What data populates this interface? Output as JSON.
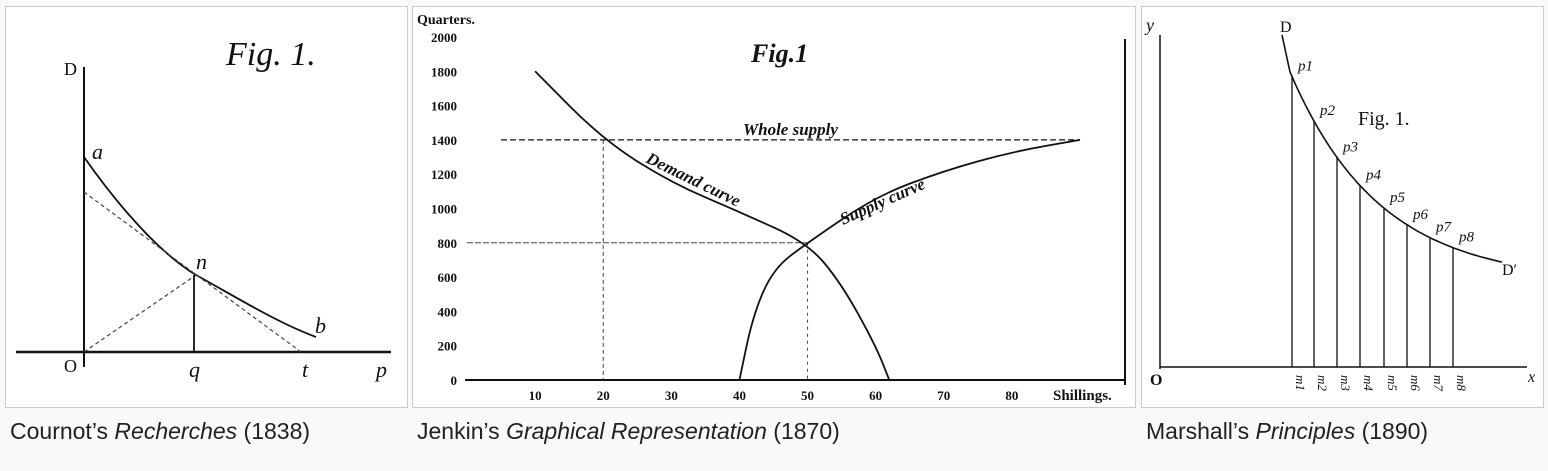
{
  "chart_data": [
    {
      "type": "line",
      "title": "Fig. 1.",
      "caption": {
        "prefix": "Cournot’s ",
        "italic": "Recherches",
        "suffix": " (1838)"
      },
      "labels": {
        "D": "D",
        "a": "a",
        "n": "n",
        "b": "b",
        "O": "O",
        "q": "q",
        "t": "t",
        "p": "p"
      }
    },
    {
      "type": "line",
      "title": "Fig.1",
      "caption": {
        "prefix": "Jenkin’s ",
        "italic": "Graphical Representation",
        "suffix": " (1870)"
      },
      "ylabel": "Quarters.",
      "xlabel": "Shillings.",
      "y_ticks": [
        0,
        200,
        400,
        600,
        800,
        1000,
        1200,
        1400,
        1600,
        1800,
        2000
      ],
      "x_ticks": [
        10,
        20,
        30,
        40,
        50,
        60,
        70,
        80
      ],
      "x_tick_labels": [
        "10",
        "20",
        "30",
        "40",
        "50",
        "60",
        "70",
        "80"
      ],
      "xlim": [
        0,
        90
      ],
      "ylim": [
        0,
        2000
      ],
      "annotations": {
        "whole_supply": "Whole supply",
        "demand": "Demand curve",
        "supply": "Supply curve"
      },
      "series": [
        {
          "name": "Demand curve",
          "x": [
            10,
            20,
            30,
            40,
            50,
            55,
            60,
            62
          ],
          "y": [
            1800,
            1400,
            1150,
            980,
            800,
            560,
            200,
            0
          ]
        },
        {
          "name": "Supply curve",
          "x": [
            40,
            42,
            45,
            50,
            60,
            70,
            80,
            90
          ],
          "y": [
            0,
            380,
            650,
            800,
            1070,
            1220,
            1330,
            1400
          ]
        },
        {
          "name": "Whole supply",
          "x": [
            5,
            90
          ],
          "y": [
            1400,
            1400
          ]
        }
      ]
    },
    {
      "type": "line",
      "title": "Fig. 1.",
      "caption": {
        "prefix": "Marshall’s ",
        "italic": "Principles",
        "suffix": " (1890)"
      },
      "axis_labels": {
        "y": "y",
        "x": "x",
        "O": "O",
        "D": "D",
        "D2": "D′"
      },
      "points": [
        "p1",
        "p2",
        "p3",
        "p4",
        "p5",
        "p6",
        "p7",
        "p8"
      ],
      "feet": [
        "m1",
        "m2",
        "m3",
        "m4",
        "m5",
        "m6",
        "m7",
        "m8"
      ]
    }
  ]
}
